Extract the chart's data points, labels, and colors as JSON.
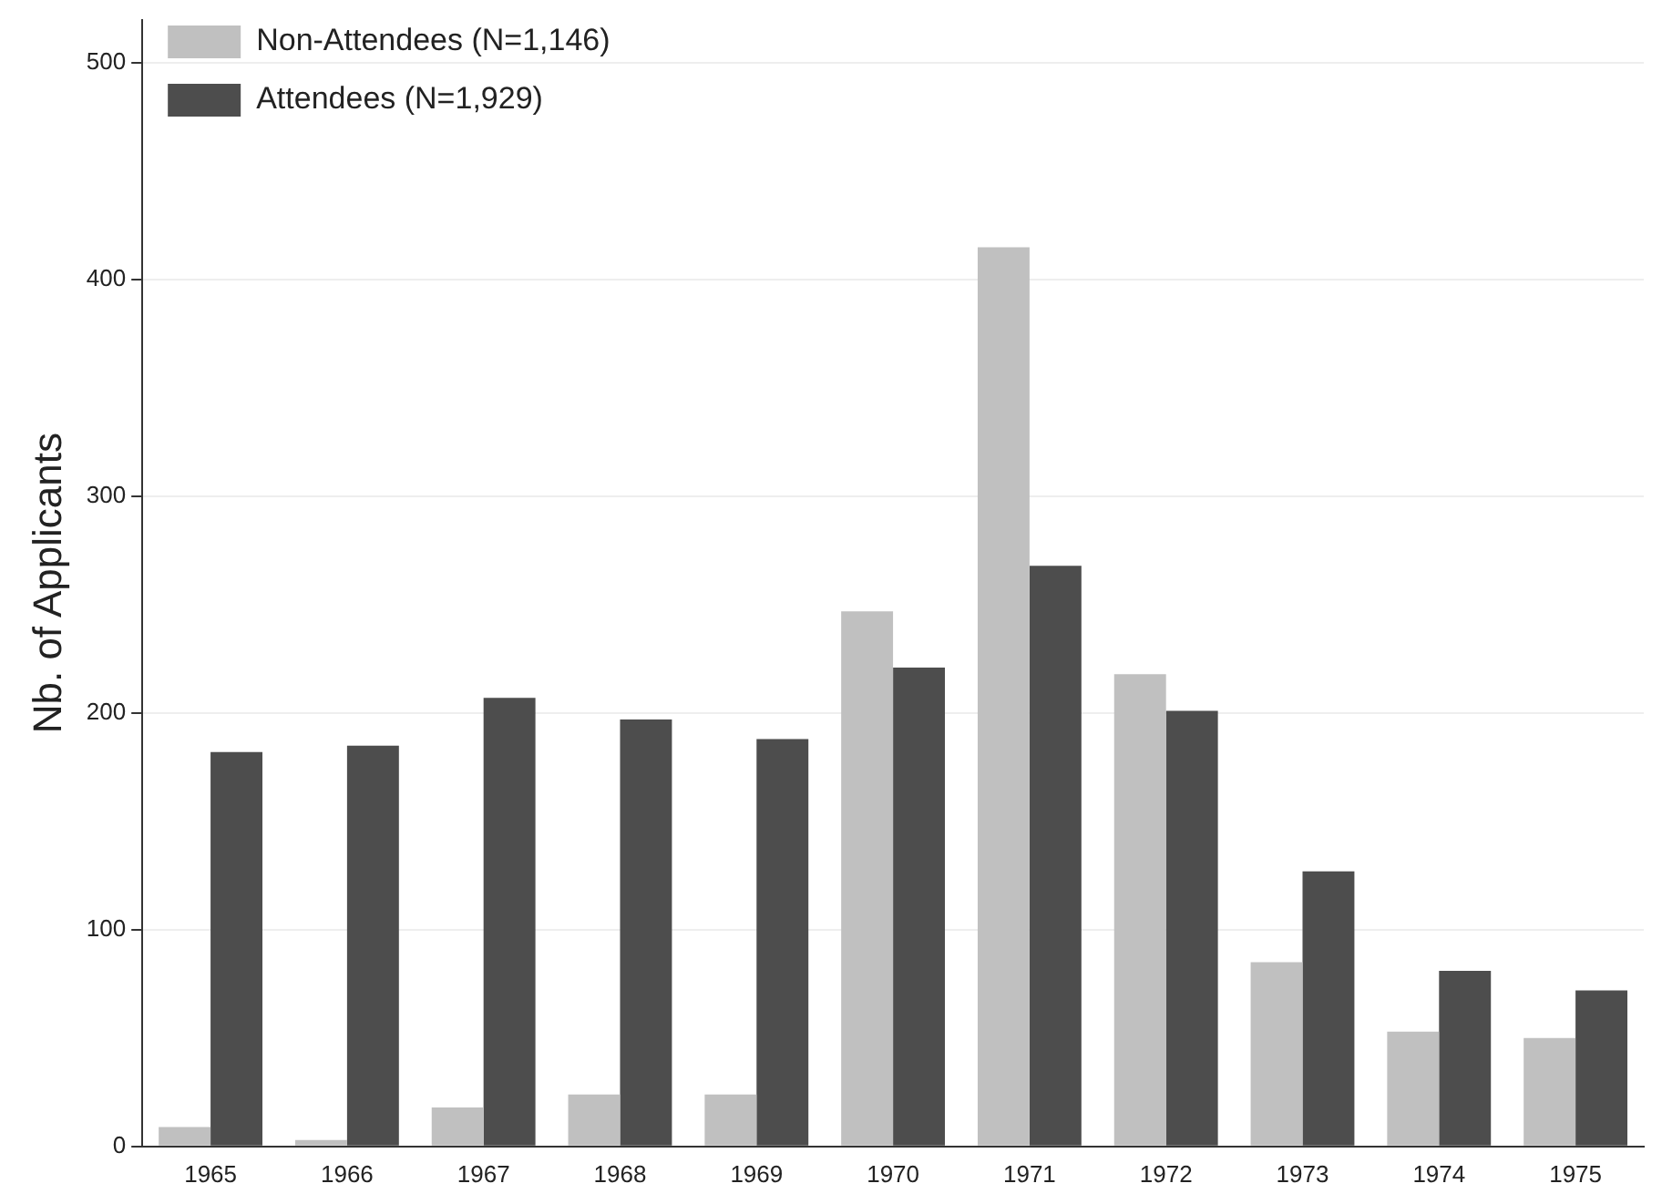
{
  "chart_data": {
    "type": "bar",
    "ylabel": "Nb. of Applicants",
    "categories": [
      "1965",
      "1966",
      "1967",
      "1968",
      "1969",
      "1970",
      "1971",
      "1972",
      "1973",
      "1974",
      "1975"
    ],
    "series": [
      {
        "name": "Non-Attendees (N=1,146)",
        "color": "#c0c0c0",
        "values": [
          9,
          3,
          18,
          24,
          24,
          247,
          415,
          218,
          85,
          53,
          50
        ]
      },
      {
        "name": "Attendees (N=1,929)",
        "color": "#4d4d4d",
        "values": [
          182,
          185,
          207,
          197,
          188,
          221,
          268,
          201,
          127,
          81,
          72
        ]
      }
    ],
    "ylim": [
      0,
      520
    ],
    "yticks": [
      0,
      100,
      200,
      300,
      400,
      500
    ],
    "grid": "y",
    "legend": "top left"
  }
}
